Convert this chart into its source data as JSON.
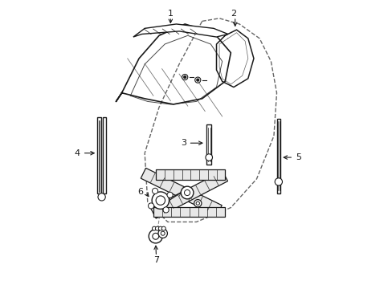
{
  "bg_color": "#ffffff",
  "line_color": "#1a1a1a",
  "dashed_color": "#555555",
  "figsize": [
    4.89,
    3.6
  ],
  "dpi": 100,
  "door_outline": {
    "x": [
      0.52,
      0.58,
      0.67,
      0.74,
      0.78,
      0.79,
      0.77,
      0.7,
      0.6,
      0.48,
      0.38,
      0.32,
      0.32,
      0.38,
      0.46,
      0.52
    ],
    "y": [
      0.94,
      0.95,
      0.93,
      0.87,
      0.78,
      0.65,
      0.5,
      0.38,
      0.28,
      0.24,
      0.24,
      0.3,
      0.48,
      0.62,
      0.72,
      0.94
    ]
  }
}
